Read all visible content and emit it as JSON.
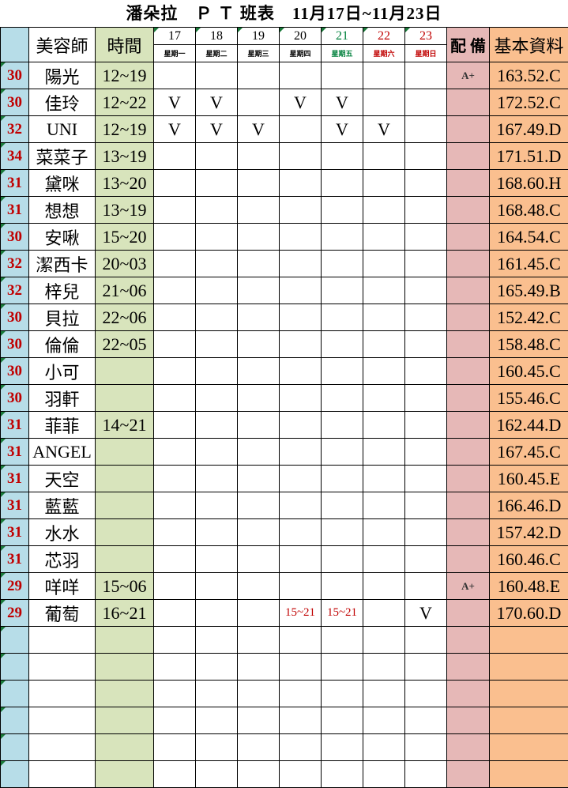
{
  "title": "潘朵拉　Ｐ Ｔ 班表　11月17日~11月23日",
  "header": {
    "name": "美容師",
    "time": "時間",
    "equip": "配 備",
    "info": "基本資料",
    "days": [
      {
        "date": "17",
        "weekday": "星期一",
        "color": "#000000"
      },
      {
        "date": "18",
        "weekday": "星期二",
        "color": "#000000"
      },
      {
        "date": "19",
        "weekday": "星期三",
        "color": "#000000"
      },
      {
        "date": "20",
        "weekday": "星期四",
        "color": "#000000"
      },
      {
        "date": "21",
        "weekday": "星期五",
        "color": "#00803c"
      },
      {
        "date": "22",
        "weekday": "星期六",
        "color": "#c00000"
      },
      {
        "date": "23",
        "weekday": "星期日",
        "color": "#c00000"
      }
    ]
  },
  "rows": [
    {
      "num": "30",
      "name": "陽光",
      "time": "12~19",
      "days": [
        "",
        "",
        "",
        "",
        "",
        "",
        ""
      ],
      "equip": "A+",
      "info": "163.52.C"
    },
    {
      "num": "30",
      "name": "佳玲",
      "time": "12~22",
      "days": [
        "V",
        "V",
        "",
        "V",
        "V",
        "",
        ""
      ],
      "equip": "",
      "info": "172.52.C"
    },
    {
      "num": "32",
      "name": "UNI",
      "time": "12~19",
      "days": [
        "V",
        "V",
        "V",
        "",
        "V",
        "V",
        ""
      ],
      "equip": "",
      "info": "167.49.D"
    },
    {
      "num": "34",
      "name": "菜菜子",
      "time": "13~19",
      "days": [
        "",
        "",
        "",
        "",
        "",
        "",
        ""
      ],
      "equip": "",
      "info": "171.51.D"
    },
    {
      "num": "31",
      "name": "黛咪",
      "time": "13~20",
      "days": [
        "",
        "",
        "",
        "",
        "",
        "",
        ""
      ],
      "equip": "",
      "info": "168.60.H"
    },
    {
      "num": "31",
      "name": "想想",
      "time": "13~19",
      "days": [
        "",
        "",
        "",
        "",
        "",
        "",
        ""
      ],
      "equip": "",
      "info": "168.48.C"
    },
    {
      "num": "30",
      "name": "安啾",
      "time": "15~20",
      "days": [
        "",
        "",
        "",
        "",
        "",
        "",
        ""
      ],
      "equip": "",
      "info": "164.54.C"
    },
    {
      "num": "32",
      "name": "潔西卡",
      "time": "20~03",
      "days": [
        "",
        "",
        "",
        "",
        "",
        "",
        ""
      ],
      "equip": "",
      "info": "161.45.C"
    },
    {
      "num": "32",
      "name": "梓兒",
      "time": "21~06",
      "days": [
        "",
        "",
        "",
        "",
        "",
        "",
        ""
      ],
      "equip": "",
      "info": "165.49.B"
    },
    {
      "num": "30",
      "name": "貝拉",
      "time": "22~06",
      "days": [
        "",
        "",
        "",
        "",
        "",
        "",
        ""
      ],
      "equip": "",
      "info": "152.42.C"
    },
    {
      "num": "30",
      "name": "倫倫",
      "time": "22~05",
      "days": [
        "",
        "",
        "",
        "",
        "",
        "",
        ""
      ],
      "equip": "",
      "info": "158.48.C"
    },
    {
      "num": "30",
      "name": "小可",
      "time": "",
      "days": [
        "",
        "",
        "",
        "",
        "",
        "",
        ""
      ],
      "equip": "",
      "info": "160.45.C"
    },
    {
      "num": "30",
      "name": "羽軒",
      "time": "",
      "days": [
        "",
        "",
        "",
        "",
        "",
        "",
        ""
      ],
      "equip": "",
      "info": "155.46.C"
    },
    {
      "num": "31",
      "name": "菲菲",
      "time": "14~21",
      "days": [
        "",
        "",
        "",
        "",
        "",
        "",
        ""
      ],
      "equip": "",
      "info": "162.44.D"
    },
    {
      "num": "31",
      "name": "ANGEL",
      "time": "",
      "days": [
        "",
        "",
        "",
        "",
        "",
        "",
        ""
      ],
      "equip": "",
      "info": "167.45.C"
    },
    {
      "num": "31",
      "name": "天空",
      "time": "",
      "days": [
        "",
        "",
        "",
        "",
        "",
        "",
        ""
      ],
      "equip": "",
      "info": "160.45.E"
    },
    {
      "num": "31",
      "name": "藍藍",
      "time": "",
      "days": [
        "",
        "",
        "",
        "",
        "",
        "",
        ""
      ],
      "equip": "",
      "info": "166.46.D"
    },
    {
      "num": "31",
      "name": "水水",
      "time": "",
      "days": [
        "",
        "",
        "",
        "",
        "",
        "",
        ""
      ],
      "equip": "",
      "info": "157.42.D"
    },
    {
      "num": "31",
      "name": "芯羽",
      "time": "",
      "days": [
        "",
        "",
        "",
        "",
        "",
        "",
        ""
      ],
      "equip": "",
      "info": "160.46.C"
    },
    {
      "num": "29",
      "name": "咩咩",
      "time": "15~06",
      "days": [
        "",
        "",
        "",
        "",
        "",
        "",
        ""
      ],
      "equip": "A+",
      "info": "160.48.E"
    },
    {
      "num": "29",
      "name": "葡萄",
      "time": "16~21",
      "days": [
        "",
        "",
        "",
        "15~21",
        "15~21",
        "",
        "V"
      ],
      "equip": "",
      "info": "170.60.D"
    },
    {
      "num": "",
      "name": "",
      "time": "",
      "days": [
        "",
        "",
        "",
        "",
        "",
        "",
        ""
      ],
      "equip": "",
      "info": ""
    },
    {
      "num": "",
      "name": "",
      "time": "",
      "days": [
        "",
        "",
        "",
        "",
        "",
        "",
        ""
      ],
      "equip": "",
      "info": ""
    },
    {
      "num": "",
      "name": "",
      "time": "",
      "days": [
        "",
        "",
        "",
        "",
        "",
        "",
        ""
      ],
      "equip": "",
      "info": ""
    },
    {
      "num": "",
      "name": "",
      "time": "",
      "days": [
        "",
        "",
        "",
        "",
        "",
        "",
        ""
      ],
      "equip": "",
      "info": ""
    },
    {
      "num": "",
      "name": "",
      "time": "",
      "days": [
        "",
        "",
        "",
        "",
        "",
        "",
        ""
      ],
      "equip": "",
      "info": ""
    },
    {
      "num": "",
      "name": "",
      "time": "",
      "days": [
        "",
        "",
        "",
        "",
        "",
        "",
        ""
      ],
      "equip": "",
      "info": ""
    }
  ]
}
